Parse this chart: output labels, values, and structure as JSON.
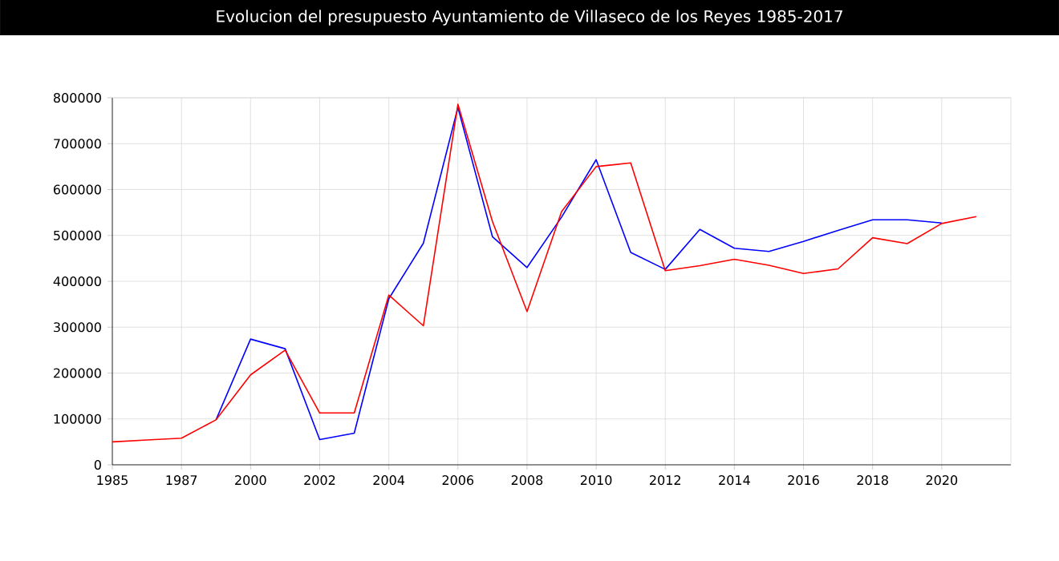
{
  "chart_data": {
    "type": "line",
    "title": "Evolucion del presupuesto Ayuntamiento de Villaseco de los Reyes 1985-2017",
    "categories": [
      "1985",
      null,
      "1987",
      null,
      "2000",
      null,
      "2002",
      null,
      "2004",
      null,
      "2006",
      null,
      "2008",
      null,
      "2010",
      null,
      "2012",
      null,
      "2014",
      null,
      "2016",
      null,
      "2018",
      null,
      "2020",
      null
    ],
    "series": [
      {
        "color": "#0000ff",
        "values": [
          null,
          null,
          null,
          98000,
          274000,
          253000,
          55000,
          69000,
          362000,
          483000,
          779000,
          497000,
          430000,
          540000,
          665000,
          463000,
          426000,
          513000,
          472000,
          465000,
          487000,
          511000,
          534000,
          534000,
          527000,
          null
        ]
      },
      {
        "color": "#ff0000",
        "values": [
          50000,
          54000,
          58000,
          98000,
          196000,
          250000,
          113000,
          113000,
          370000,
          303000,
          786000,
          530000,
          334000,
          552000,
          650000,
          658000,
          423000,
          434000,
          448000,
          435000,
          417000,
          427000,
          495000,
          482000,
          526000,
          541000
        ]
      }
    ],
    "ylim": [
      0,
      800000
    ],
    "yticks": [
      0,
      100000,
      200000,
      300000,
      400000,
      500000,
      600000,
      700000,
      800000
    ],
    "grid": true,
    "marker": "none",
    "line_style": "solid"
  }
}
